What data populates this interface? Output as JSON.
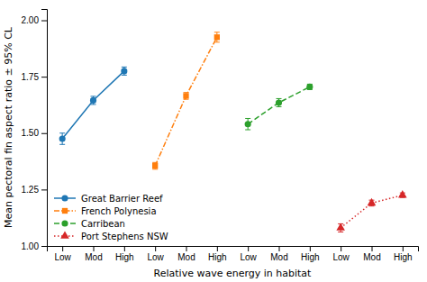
{
  "chart_data": {
    "type": "line",
    "ylabel": "Mean pectoral fin aspect ratio ± 95% CL",
    "xlabel": "Relative wave energy in habitat",
    "categories": [
      "Low",
      "Mod",
      "High",
      "Low",
      "Mod",
      "High",
      "Low",
      "Mod",
      "High",
      "Low",
      "Mod",
      "High"
    ],
    "ylim": [
      1.0,
      2.05
    ],
    "yticks": [
      {
        "value": 1.0,
        "label": "1.00"
      },
      1.25,
      {
        "value": 1.5,
        "label": "1.50"
      },
      1.75,
      {
        "value": 2.0,
        "label": "2.00"
      }
    ],
    "grid": false,
    "legend": "lower left",
    "series": [
      {
        "name": "Great Barrier Reef",
        "marker": "circle",
        "line_style": "solid",
        "values": [
          1.475,
          1.645,
          1.775,
          null,
          null,
          null,
          null,
          null,
          null,
          null,
          null,
          null
        ],
        "yerr": [
          0.025,
          0.018,
          0.018,
          null,
          null,
          null,
          null,
          null,
          null,
          null,
          null,
          null
        ]
      },
      {
        "name": "French Polynesia",
        "marker": "square",
        "line_style": "dashdot",
        "values": [
          null,
          null,
          null,
          1.355,
          1.665,
          1.925,
          null,
          null,
          null,
          null,
          null,
          null
        ],
        "yerr": [
          null,
          null,
          null,
          0.015,
          0.015,
          0.022,
          null,
          null,
          null,
          null,
          null,
          null
        ]
      },
      {
        "name": "Carribean",
        "marker": "circle",
        "line_style": "dashed",
        "values": [
          null,
          null,
          null,
          null,
          null,
          null,
          1.54,
          1.635,
          1.705,
          null,
          null,
          null
        ],
        "yerr": [
          null,
          null,
          null,
          null,
          null,
          null,
          0.025,
          0.018,
          0.012,
          null,
          null,
          null
        ]
      },
      {
        "name": "Port Stephens NSW",
        "marker": "triangle",
        "line_style": "dotted",
        "values": [
          null,
          null,
          null,
          null,
          null,
          null,
          null,
          null,
          null,
          1.08,
          1.19,
          1.225
        ],
        "yerr": [
          null,
          null,
          null,
          null,
          null,
          null,
          null,
          null,
          null,
          0.018,
          0.013,
          0.01
        ]
      }
    ]
  }
}
